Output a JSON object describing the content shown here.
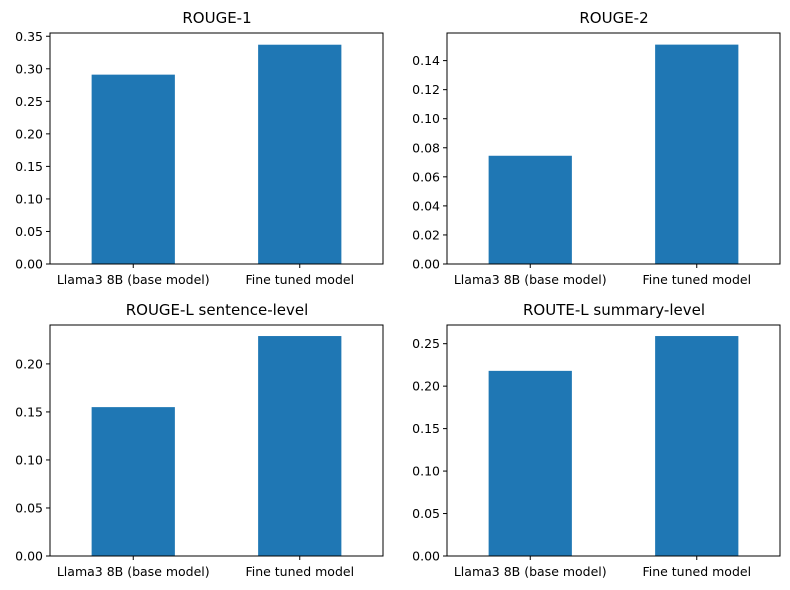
{
  "chart_data": [
    {
      "type": "bar",
      "title": "ROUGE-1",
      "categories": [
        "Llama3 8B (base model)",
        "Fine tuned model"
      ],
      "values": [
        0.291,
        0.337
      ],
      "ylim": [
        0,
        0.355
      ],
      "yticks": [
        "0.00",
        "0.05",
        "0.10",
        "0.15",
        "0.20",
        "0.25",
        "0.30",
        "0.35"
      ],
      "ytick_values": [
        0,
        0.05,
        0.1,
        0.15,
        0.2,
        0.25,
        0.3,
        0.35
      ],
      "color": "#1f77b4",
      "grid": false
    },
    {
      "type": "bar",
      "title": "ROUGE-2",
      "categories": [
        "Llama3 8B (base model)",
        "Fine tuned model"
      ],
      "values": [
        0.0745,
        0.151
      ],
      "ylim": [
        0,
        0.159
      ],
      "yticks": [
        "0.00",
        "0.02",
        "0.04",
        "0.06",
        "0.08",
        "0.10",
        "0.12",
        "0.14"
      ],
      "ytick_values": [
        0,
        0.02,
        0.04,
        0.06,
        0.08,
        0.1,
        0.12,
        0.14
      ],
      "color": "#1f77b4",
      "grid": false
    },
    {
      "type": "bar",
      "title": "ROUGE-L sentence-level",
      "categories": [
        "Llama3 8B (base model)",
        "Fine tuned model"
      ],
      "values": [
        0.155,
        0.229
      ],
      "ylim": [
        0,
        0.2405
      ],
      "yticks": [
        "0.00",
        "0.05",
        "0.10",
        "0.15",
        "0.20"
      ],
      "ytick_values": [
        0,
        0.05,
        0.1,
        0.15,
        0.2
      ],
      "color": "#1f77b4",
      "grid": false
    },
    {
      "type": "bar",
      "title": "ROUTE-L summary-level",
      "categories": [
        "Llama3 8B (base model)",
        "Fine tuned model"
      ],
      "values": [
        0.218,
        0.259
      ],
      "ylim": [
        0,
        0.272
      ],
      "yticks": [
        "0.00",
        "0.05",
        "0.10",
        "0.15",
        "0.20",
        "0.25"
      ],
      "ytick_values": [
        0,
        0.05,
        0.1,
        0.15,
        0.2,
        0.25
      ],
      "color": "#1f77b4",
      "grid": false
    }
  ]
}
